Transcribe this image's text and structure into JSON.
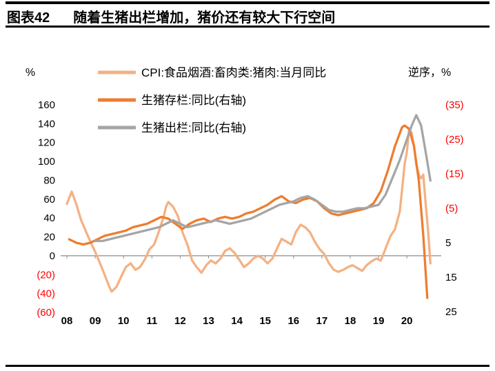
{
  "header": {
    "figure_label": "图表42",
    "title": "随着生猪出栏增加，猪价还有较大下行空间"
  },
  "chart_data": {
    "type": "line",
    "title": "随着生猪出栏增加，猪价还有较大下行空间",
    "left_axis": {
      "unit": "%",
      "max": 160,
      "min": -60,
      "ticks": [
        "160",
        "140",
        "120",
        "100",
        "80",
        "60",
        "40",
        "20",
        "0",
        "(20)",
        "(40)",
        "(60)"
      ],
      "tick_values": [
        160,
        140,
        120,
        100,
        80,
        60,
        40,
        20,
        0,
        -20,
        -40,
        -60
      ]
    },
    "right_axis": {
      "unit": "逆序，%",
      "inverted": true,
      "top": -35,
      "bottom": 25,
      "ticks": [
        "(35)",
        "(25)",
        "(15)",
        "(5)",
        "5",
        "15",
        "25"
      ],
      "tick_values": [
        -35,
        -25,
        -15,
        -5,
        5,
        15,
        25
      ]
    },
    "x_axis": {
      "start_year": 2008,
      "labels": [
        "08",
        "09",
        "10",
        "11",
        "12",
        "13",
        "14",
        "15",
        "16",
        "17",
        "18",
        "19",
        "20"
      ]
    },
    "colors": {
      "negative_tick": "#FF0000",
      "axis_line": "#8C8C8C",
      "cpi_line": "#F4B183",
      "inventory_line": "#ED7D31",
      "slaughter_line": "#A5A5A5"
    },
    "series": [
      {
        "name": "CPI:食品烟酒:畜肉类:猪肉:当月同比",
        "axis": "left",
        "color": "#F4B183",
        "points": [
          [
            2008.0,
            55
          ],
          [
            2008.17,
            68
          ],
          [
            2008.33,
            55
          ],
          [
            2008.5,
            38
          ],
          [
            2008.67,
            26
          ],
          [
            2008.83,
            15
          ],
          [
            2009.0,
            4
          ],
          [
            2009.17,
            -8
          ],
          [
            2009.33,
            -20
          ],
          [
            2009.5,
            -33
          ],
          [
            2009.58,
            -38
          ],
          [
            2009.75,
            -33
          ],
          [
            2009.92,
            -22
          ],
          [
            2010.08,
            -12
          ],
          [
            2010.25,
            -8
          ],
          [
            2010.42,
            -15
          ],
          [
            2010.58,
            -12
          ],
          [
            2010.75,
            -4
          ],
          [
            2010.92,
            7
          ],
          [
            2011.08,
            12
          ],
          [
            2011.25,
            26
          ],
          [
            2011.42,
            42
          ],
          [
            2011.5,
            52
          ],
          [
            2011.58,
            57
          ],
          [
            2011.75,
            52
          ],
          [
            2011.92,
            42
          ],
          [
            2012.08,
            25
          ],
          [
            2012.25,
            12
          ],
          [
            2012.42,
            -5
          ],
          [
            2012.58,
            -12
          ],
          [
            2012.75,
            -18
          ],
          [
            2012.92,
            -10
          ],
          [
            2013.08,
            -5
          ],
          [
            2013.25,
            -8
          ],
          [
            2013.42,
            -3
          ],
          [
            2013.58,
            5
          ],
          [
            2013.75,
            8
          ],
          [
            2013.92,
            3
          ],
          [
            2014.08,
            -4
          ],
          [
            2014.25,
            -12
          ],
          [
            2014.42,
            -8
          ],
          [
            2014.58,
            -3
          ],
          [
            2014.75,
            0
          ],
          [
            2014.92,
            -3
          ],
          [
            2015.08,
            -8
          ],
          [
            2015.25,
            -3
          ],
          [
            2015.42,
            8
          ],
          [
            2015.58,
            18
          ],
          [
            2015.75,
            15
          ],
          [
            2015.92,
            12
          ],
          [
            2016.08,
            25
          ],
          [
            2016.25,
            33
          ],
          [
            2016.42,
            30
          ],
          [
            2016.58,
            25
          ],
          [
            2016.75,
            15
          ],
          [
            2016.92,
            7
          ],
          [
            2017.08,
            2
          ],
          [
            2017.25,
            -8
          ],
          [
            2017.42,
            -15
          ],
          [
            2017.58,
            -17
          ],
          [
            2017.75,
            -15
          ],
          [
            2017.92,
            -12
          ],
          [
            2018.08,
            -10
          ],
          [
            2018.25,
            -13
          ],
          [
            2018.42,
            -16
          ],
          [
            2018.58,
            -10
          ],
          [
            2018.75,
            -6
          ],
          [
            2018.92,
            -3
          ],
          [
            2019.08,
            -5
          ],
          [
            2019.25,
            8
          ],
          [
            2019.42,
            21
          ],
          [
            2019.58,
            28
          ],
          [
            2019.75,
            47
          ],
          [
            2019.83,
            70
          ],
          [
            2019.92,
            97
          ],
          [
            2020.0,
            110
          ],
          [
            2020.08,
            135
          ],
          [
            2020.17,
            130
          ],
          [
            2020.25,
            116
          ],
          [
            2020.33,
            97
          ],
          [
            2020.42,
            86
          ],
          [
            2020.5,
            82
          ],
          [
            2020.58,
            86
          ],
          [
            2020.67,
            53
          ],
          [
            2020.75,
            26
          ],
          [
            2020.83,
            -8
          ]
        ]
      },
      {
        "name": "生猪存栏:同比(右轴)",
        "axis": "right",
        "color": "#ED7D31",
        "points": [
          [
            2008.08,
            4
          ],
          [
            2008.33,
            5
          ],
          [
            2008.58,
            5.5
          ],
          [
            2008.83,
            5
          ],
          [
            2009.08,
            4
          ],
          [
            2009.33,
            3
          ],
          [
            2009.58,
            2.5
          ],
          [
            2009.83,
            2
          ],
          [
            2010.08,
            1.5
          ],
          [
            2010.33,
            0.5
          ],
          [
            2010.58,
            0
          ],
          [
            2010.83,
            -0.5
          ],
          [
            2011.08,
            -1.5
          ],
          [
            2011.33,
            -2.5
          ],
          [
            2011.58,
            -2
          ],
          [
            2011.83,
            -0.5
          ],
          [
            2012.08,
            1
          ],
          [
            2012.33,
            -0.5
          ],
          [
            2012.58,
            -1.5
          ],
          [
            2012.83,
            -2
          ],
          [
            2013.08,
            -1
          ],
          [
            2013.33,
            -2
          ],
          [
            2013.58,
            -2.5
          ],
          [
            2013.83,
            -2
          ],
          [
            2014.08,
            -2.5
          ],
          [
            2014.33,
            -3.5
          ],
          [
            2014.58,
            -4
          ],
          [
            2014.83,
            -5
          ],
          [
            2015.08,
            -6
          ],
          [
            2015.33,
            -7.5
          ],
          [
            2015.58,
            -8.5
          ],
          [
            2015.83,
            -7
          ],
          [
            2016.08,
            -6.5
          ],
          [
            2016.33,
            -7.5
          ],
          [
            2016.58,
            -8
          ],
          [
            2016.83,
            -7
          ],
          [
            2017.08,
            -5
          ],
          [
            2017.33,
            -3.5
          ],
          [
            2017.58,
            -3
          ],
          [
            2017.83,
            -3.5
          ],
          [
            2018.08,
            -4
          ],
          [
            2018.33,
            -4.5
          ],
          [
            2018.58,
            -5
          ],
          [
            2018.83,
            -6.5
          ],
          [
            2019.08,
            -10
          ],
          [
            2019.33,
            -16
          ],
          [
            2019.58,
            -23
          ],
          [
            2019.83,
            -28.5
          ],
          [
            2019.92,
            -29
          ],
          [
            2020.08,
            -28
          ],
          [
            2020.25,
            -23
          ],
          [
            2020.42,
            -13
          ],
          [
            2020.58,
            3
          ],
          [
            2020.72,
            21
          ]
        ]
      },
      {
        "name": "生猪出栏:同比(右轴)",
        "axis": "right",
        "color": "#A5A5A5",
        "points": [
          [
            2009.0,
            4.5
          ],
          [
            2009.25,
            4.5
          ],
          [
            2009.5,
            4
          ],
          [
            2009.75,
            3.5
          ],
          [
            2010.0,
            3
          ],
          [
            2010.25,
            2.5
          ],
          [
            2010.5,
            2
          ],
          [
            2010.75,
            1.5
          ],
          [
            2011.0,
            1
          ],
          [
            2011.25,
            0.5
          ],
          [
            2011.5,
            -0.5
          ],
          [
            2011.75,
            -1.5
          ],
          [
            2012.0,
            -0.5
          ],
          [
            2012.25,
            0.5
          ],
          [
            2012.5,
            0
          ],
          [
            2012.75,
            -0.5
          ],
          [
            2013.0,
            -1
          ],
          [
            2013.25,
            -1.5
          ],
          [
            2013.5,
            -1
          ],
          [
            2013.75,
            -0.5
          ],
          [
            2014.0,
            -1
          ],
          [
            2014.25,
            -1.5
          ],
          [
            2014.5,
            -2
          ],
          [
            2014.75,
            -3
          ],
          [
            2015.0,
            -4
          ],
          [
            2015.25,
            -5
          ],
          [
            2015.5,
            -6
          ],
          [
            2015.75,
            -6.5
          ],
          [
            2016.0,
            -7
          ],
          [
            2016.25,
            -8
          ],
          [
            2016.5,
            -8.5
          ],
          [
            2016.75,
            -7.5
          ],
          [
            2017.0,
            -6
          ],
          [
            2017.25,
            -4.5
          ],
          [
            2017.5,
            -4
          ],
          [
            2017.75,
            -4
          ],
          [
            2018.0,
            -4.5
          ],
          [
            2018.25,
            -5
          ],
          [
            2018.5,
            -5
          ],
          [
            2018.75,
            -5.5
          ],
          [
            2019.0,
            -6
          ],
          [
            2019.25,
            -9
          ],
          [
            2019.5,
            -14
          ],
          [
            2019.75,
            -19
          ],
          [
            2020.0,
            -25
          ],
          [
            2020.17,
            -29
          ],
          [
            2020.33,
            -32
          ],
          [
            2020.5,
            -29
          ],
          [
            2020.67,
            -21
          ],
          [
            2020.83,
            -13
          ]
        ]
      }
    ]
  }
}
